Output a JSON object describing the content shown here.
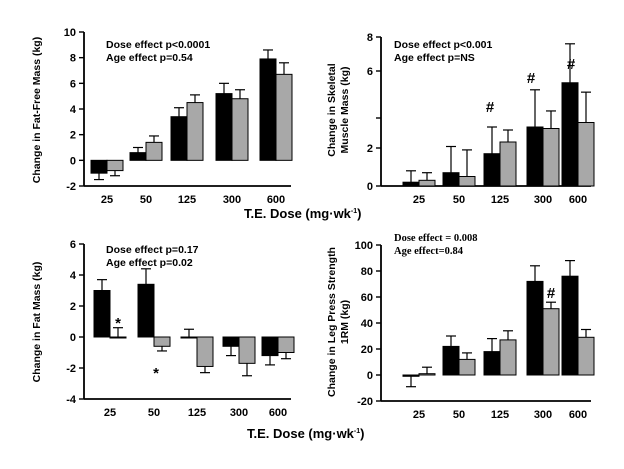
{
  "chart_data": [
    {
      "id": "ffm",
      "type": "bar",
      "categories": [
        "25",
        "50",
        "125",
        "300",
        "600"
      ],
      "series": [
        {
          "color": "#000000",
          "values": [
            -1.0,
            0.6,
            3.4,
            5.2,
            7.9
          ],
          "errors": [
            0.5,
            0.4,
            0.7,
            0.8,
            0.7
          ]
        },
        {
          "color": "#a8a8a8",
          "values": [
            -0.8,
            1.4,
            4.5,
            4.8,
            6.7
          ],
          "errors": [
            0.4,
            0.5,
            0.6,
            0.7,
            0.9
          ]
        }
      ],
      "ylabel": "Change in Fat-Free Mass (kg)",
      "ylim": [
        -2,
        10
      ],
      "yticks": [
        "-2",
        "0",
        "2",
        "4",
        "6",
        "8",
        "10"
      ],
      "annotations": [
        "Dose effect p<0.0001",
        "Age effect    p=0.54"
      ],
      "markers": []
    },
    {
      "id": "sm",
      "type": "bar",
      "categories": [
        "25",
        "50",
        "125",
        "300",
        "600"
      ],
      "series": [
        {
          "color": "#000000",
          "values": [
            0.2,
            0.7,
            1.7,
            3.4,
            5.5
          ],
          "errors": [
            0.6,
            1.4,
            1.7,
            1.8,
            2.1
          ]
        },
        {
          "color": "#a8a8a8",
          "values": [
            0.3,
            0.5,
            2.4,
            3.3,
            3.7
          ],
          "errors": [
            0.4,
            1.4,
            0.8,
            1.0,
            1.4
          ]
        }
      ],
      "ylabel": "Change in Skeletal\nMuscle Mass (kg)",
      "ylim": [
        0,
        8
      ],
      "yticks": [
        "0",
        "2",
        "",
        "6",
        "8"
      ],
      "annotations": [
        "Dose effect p<0.001",
        "Age effect    p=NS"
      ],
      "markers": [
        {
          "category": "125",
          "symbol": "#"
        },
        {
          "category": "300",
          "symbol": "#"
        },
        {
          "category": "600",
          "symbol": "#"
        }
      ]
    },
    {
      "id": "fm",
      "type": "bar",
      "categories": [
        "25",
        "50",
        "125",
        "300",
        "600"
      ],
      "series": [
        {
          "color": "#000000",
          "values": [
            3.0,
            3.4,
            0.0,
            -0.6,
            -1.2
          ],
          "errors": [
            0.7,
            1.0,
            0.5,
            0.6,
            0.6
          ]
        },
        {
          "color": "#a8a8a8",
          "values": [
            0.0,
            -0.6,
            -1.9,
            -1.7,
            -1.0
          ],
          "errors": [
            0.6,
            0.3,
            0.4,
            0.8,
            0.4
          ]
        }
      ],
      "ylabel": "Change in Fat Mass (kg)",
      "ylim": [
        -4,
        6
      ],
      "yticks": [
        "-4",
        "-2",
        "0",
        "2",
        "4",
        "6"
      ],
      "annotations": [
        "Dose effect p=0.17",
        "Age effect    p=0.02"
      ],
      "markers": [
        {
          "category": "25",
          "symbol": "*"
        },
        {
          "category": "50",
          "symbol": "*"
        }
      ]
    },
    {
      "id": "leg",
      "type": "bar",
      "categories": [
        "25",
        "50",
        "125",
        "300",
        "600"
      ],
      "series": [
        {
          "color": "#000000",
          "values": [
            -1,
            22,
            18,
            72,
            76
          ],
          "errors": [
            8,
            8,
            10,
            12,
            12
          ]
        },
        {
          "color": "#a8a8a8",
          "values": [
            1,
            12,
            27,
            51,
            29
          ],
          "errors": [
            5,
            5,
            7,
            5,
            6
          ]
        }
      ],
      "ylabel": "Change in Leg Press Strength\n1RM (kg)",
      "ylim": [
        -20,
        100
      ],
      "yticks": [
        "-20",
        "0",
        "20",
        "40",
        "60",
        "80",
        "100"
      ],
      "annotations": [
        "Dose effect = 0.008",
        "Age effect=0.84"
      ],
      "markers": [
        {
          "category": "300",
          "symbol": "#"
        }
      ]
    }
  ],
  "xtitle": "T.E. Dose (mg·wk",
  "xtitle_superscript": "-1",
  "xtitle_close": ")"
}
